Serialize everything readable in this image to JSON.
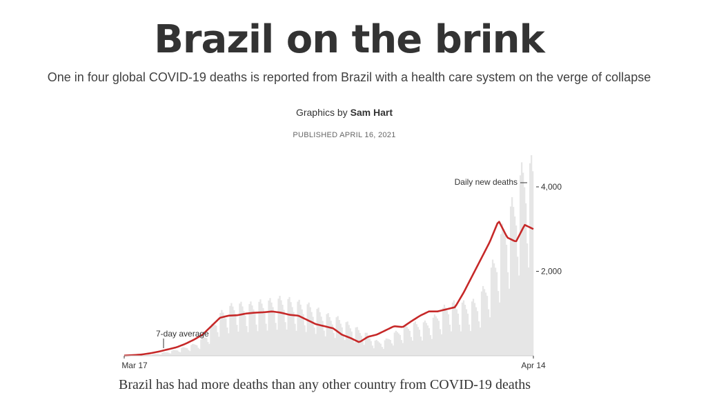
{
  "header": {
    "title": "Brazil on the brink",
    "subtitle": "One in four global COVID-19 deaths is reported from Brazil with a health care system on the verge of collapse",
    "byline_prefix": "Graphics by",
    "byline_author": "Sam Hart",
    "published": "PUBLISHED APRIL 16, 2021"
  },
  "colors": {
    "average_line": "#c62828",
    "daily_bars": "#e6e6e6",
    "text": "#333333"
  },
  "chart_data": {
    "type": "area",
    "title": "",
    "xlabel": "",
    "ylabel": "",
    "x_range": [
      "Mar 17",
      "Apr 14"
    ],
    "x_tick_labels": [
      "Mar 17",
      "Apr 14"
    ],
    "y_ticks": [
      2000,
      4000
    ],
    "y_tick_labels": [
      "2,000",
      "4,000"
    ],
    "ylim": [
      0,
      4200
    ],
    "grid": false,
    "annotations": {
      "daily": "Daily new deaths",
      "average": "7-day average"
    },
    "series": [
      {
        "name": "Daily new deaths",
        "weekly_anchor_values": [
          0,
          0,
          10,
          30,
          60,
          100,
          150,
          200,
          280,
          480,
          800,
          950,
          1050,
          1000,
          1050,
          1080,
          1100,
          1150,
          1100,
          1050,
          1000,
          900,
          800,
          750,
          650,
          550,
          450,
          300,
          300,
          450,
          550,
          650,
          650,
          700,
          900,
          1050,
          1050,
          1050,
          1100,
          1450,
          2000,
          2700,
          3100,
          3800,
          3800
        ]
      },
      {
        "name": "7-day average",
        "weekly_anchor_values": [
          5,
          15,
          30,
          60,
          100,
          150,
          200,
          280,
          380,
          500,
          700,
          900,
          950,
          960,
          1000,
          1020,
          1030,
          1050,
          1020,
          970,
          950,
          850,
          750,
          700,
          650,
          500,
          420,
          320,
          450,
          500,
          600,
          700,
          680,
          820,
          950,
          1050,
          1050,
          1100,
          1150,
          1500,
          1900,
          2300,
          2700,
          3200,
          2800,
          2700,
          3100,
          3000
        ]
      }
    ]
  },
  "footer": {
    "text_fragment": "Brazil has had more deaths than any other country from COVID-19 deaths"
  }
}
